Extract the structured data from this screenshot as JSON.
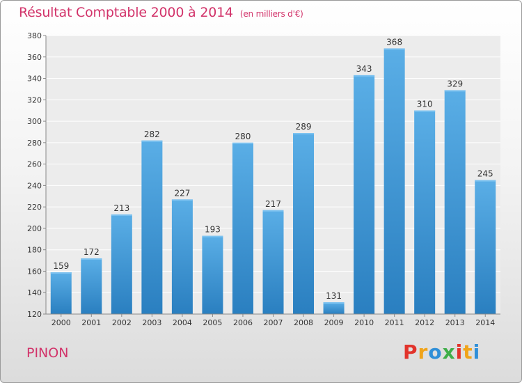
{
  "header": {
    "title": "Résultat Comptable 2000 à 2014",
    "unit": "(en milliers d'€)"
  },
  "footer": {
    "commune": "PINON",
    "logo_text": "Proxiti",
    "logo_colors": [
      "#e2332b",
      "#f0a41a",
      "#2f8fd8",
      "#3fae49",
      "#e2332b",
      "#f0a41a",
      "#2f8fd8"
    ]
  },
  "chart_data": {
    "type": "bar",
    "categories": [
      "2000",
      "2001",
      "2002",
      "2003",
      "2004",
      "2005",
      "2006",
      "2007",
      "2008",
      "2009",
      "2010",
      "2011",
      "2012",
      "2013",
      "2014"
    ],
    "values": [
      159,
      172,
      213,
      282,
      227,
      193,
      280,
      217,
      289,
      131,
      343,
      368,
      310,
      329,
      245
    ],
    "title": "Résultat Comptable 2000 à 2014",
    "xlabel": "",
    "ylabel": "",
    "ylim": [
      120,
      380
    ],
    "yticks": [
      120,
      140,
      160,
      180,
      200,
      220,
      240,
      260,
      280,
      300,
      320,
      340,
      360,
      380
    ],
    "grid": true,
    "bar_color_top": "#5aaee6",
    "bar_color_bottom": "#2a7fc0"
  }
}
